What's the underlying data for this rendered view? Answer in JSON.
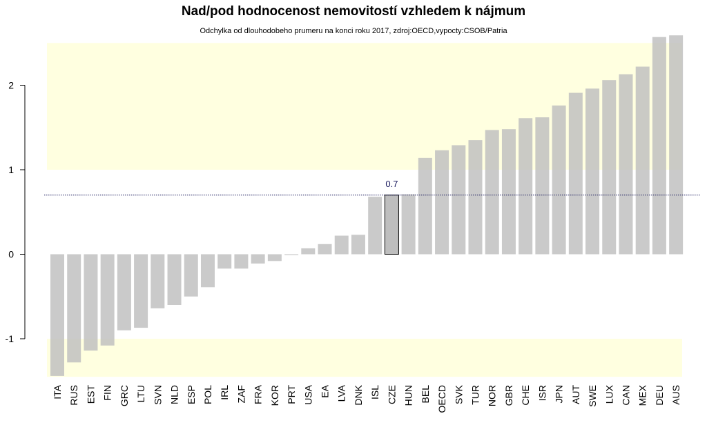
{
  "chart_data": {
    "type": "bar",
    "title": "Nad/pod hodnocenost nemovitostí vzhledem k nájmum",
    "subtitle": "Odchylka od dlouhodobeho prumeru na konci roku 2017, zdroj:OECD,vypocty:CSOB/Patria",
    "xlabel": "",
    "ylabel": "",
    "categories": [
      "ITA",
      "RUS",
      "EST",
      "FIN",
      "GRC",
      "LTU",
      "SVN",
      "NLD",
      "ESP",
      "POL",
      "IRL",
      "ZAF",
      "FRA",
      "KOR",
      "PRT",
      "USA",
      "EA",
      "LVA",
      "DNK",
      "ISL",
      "CZE",
      "HUN",
      "BEL",
      "OECD",
      "SVK",
      "TUR",
      "NOR",
      "GBR",
      "CHE",
      "ISR",
      "JPN",
      "AUT",
      "SWE",
      "LUX",
      "CAN",
      "MEX",
      "DEU",
      "AUS"
    ],
    "values": [
      -1.44,
      -1.28,
      -1.14,
      -1.08,
      -0.9,
      -0.87,
      -0.64,
      -0.6,
      -0.5,
      -0.39,
      -0.17,
      -0.17,
      -0.11,
      -0.08,
      -0.01,
      0.07,
      0.12,
      0.22,
      0.23,
      0.68,
      0.7,
      0.71,
      1.14,
      1.23,
      1.29,
      1.35,
      1.47,
      1.48,
      1.61,
      1.62,
      1.76,
      1.91,
      1.96,
      2.06,
      2.13,
      2.22,
      2.57,
      2.59
    ],
    "highlight": {
      "category": "CZE",
      "label": "0.7",
      "color": "#1a1a5e"
    },
    "reference_line": 0.7,
    "bands": [
      {
        "from": 1.0,
        "to": 2.5
      },
      {
        "from": -1.45,
        "to": -1.0
      }
    ],
    "yticks": [
      "-1",
      "0",
      "1",
      "2"
    ],
    "ylim": [
      -1.45,
      2.6
    ],
    "colors": {
      "bar": "#bebebe",
      "band": "#ffffe0",
      "highlight_bar": "#bebebe",
      "highlight_stroke": "#000000",
      "reference": "#1a1a5e"
    }
  }
}
